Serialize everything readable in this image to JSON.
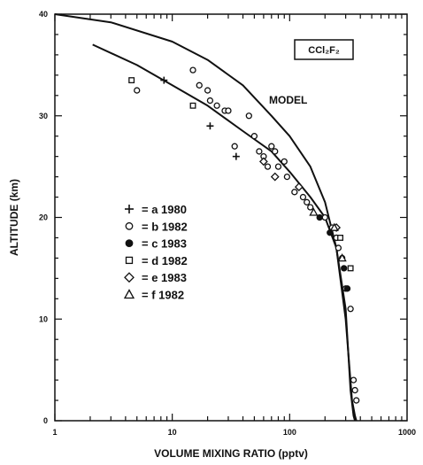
{
  "chart_data": {
    "type": "scatter",
    "species_label": "CCl₂F₂",
    "xlabel": "VOLUME MIXING RATIO (pptv)",
    "ylabel": "ALTITUDE (km)",
    "x_scale": "log",
    "xlim": [
      1,
      1000
    ],
    "ylim": [
      0,
      40
    ],
    "x_ticks": [
      {
        "value": 1,
        "label": "1"
      },
      {
        "value": 10,
        "label": "10"
      },
      {
        "value": 100,
        "label": "100"
      },
      {
        "value": 1000,
        "label": "1000"
      }
    ],
    "y_ticks": [
      {
        "value": 0,
        "label": "0"
      },
      {
        "value": 10,
        "label": "10"
      },
      {
        "value": 20,
        "label": "20"
      },
      {
        "value": 30,
        "label": "30"
      },
      {
        "value": 40,
        "label": "40"
      }
    ],
    "model_label": "MODEL",
    "lines": [
      {
        "x": [
          1,
          3,
          10,
          20,
          40,
          70,
          100,
          150,
          200,
          250,
          300,
          340,
          360,
          370
        ],
        "y": [
          40,
          39.2,
          37.3,
          35.5,
          33,
          30,
          28,
          25,
          21.5,
          17,
          10,
          2,
          0.5,
          0
        ]
      },
      {
        "x": [
          2.1,
          5,
          10,
          20,
          40,
          70,
          100,
          150,
          200,
          250,
          300,
          330,
          350,
          360
        ],
        "y": [
          37,
          35,
          33,
          31,
          28.5,
          26.5,
          24.5,
          22,
          20,
          17,
          11,
          3,
          0.5,
          0
        ]
      }
    ],
    "legend": [
      {
        "symbol": "plus",
        "label": "= a 1980"
      },
      {
        "symbol": "circle-open",
        "label": "= b 1982"
      },
      {
        "symbol": "circle-filled",
        "label": "= c 1983"
      },
      {
        "symbol": "square-open",
        "label": "= d 1982"
      },
      {
        "symbol": "diamond-open",
        "label": "= e 1983"
      },
      {
        "symbol": "triangle-open",
        "label": "= f 1982"
      }
    ],
    "series": [
      {
        "symbol": "plus",
        "x": [
          8.5,
          21,
          35
        ],
        "y": [
          33.5,
          29,
          26
        ]
      },
      {
        "symbol": "circle-open",
        "x": [
          5,
          15,
          17,
          20,
          21,
          24,
          28,
          30,
          34,
          45,
          50,
          55,
          60,
          65,
          70,
          75,
          80,
          90,
          95,
          110,
          130,
          140,
          150,
          200,
          230,
          250,
          260,
          280,
          300,
          330,
          350,
          360,
          370
        ],
        "y": [
          32.5,
          34.5,
          33,
          32.5,
          31.5,
          31,
          30.5,
          30.5,
          27,
          30,
          28,
          26.5,
          26,
          25,
          27,
          26.5,
          25,
          25.5,
          24,
          22.5,
          22,
          21.5,
          21,
          20,
          19,
          18,
          17,
          16,
          13,
          11,
          4,
          3,
          2
        ]
      },
      {
        "symbol": "circle-filled",
        "x": [
          180,
          220,
          290,
          310
        ],
        "y": [
          20,
          18.5,
          15,
          13
        ]
      },
      {
        "symbol": "square-open",
        "x": [
          4.5,
          15,
          270,
          330
        ],
        "y": [
          33.5,
          31,
          18,
          15
        ]
      },
      {
        "symbol": "diamond-open",
        "x": [
          60,
          75,
          120,
          250
        ],
        "y": [
          25.5,
          24,
          23,
          19
        ]
      },
      {
        "symbol": "triangle-open",
        "x": [
          160,
          240,
          280
        ],
        "y": [
          20.5,
          19,
          16
        ]
      }
    ]
  }
}
